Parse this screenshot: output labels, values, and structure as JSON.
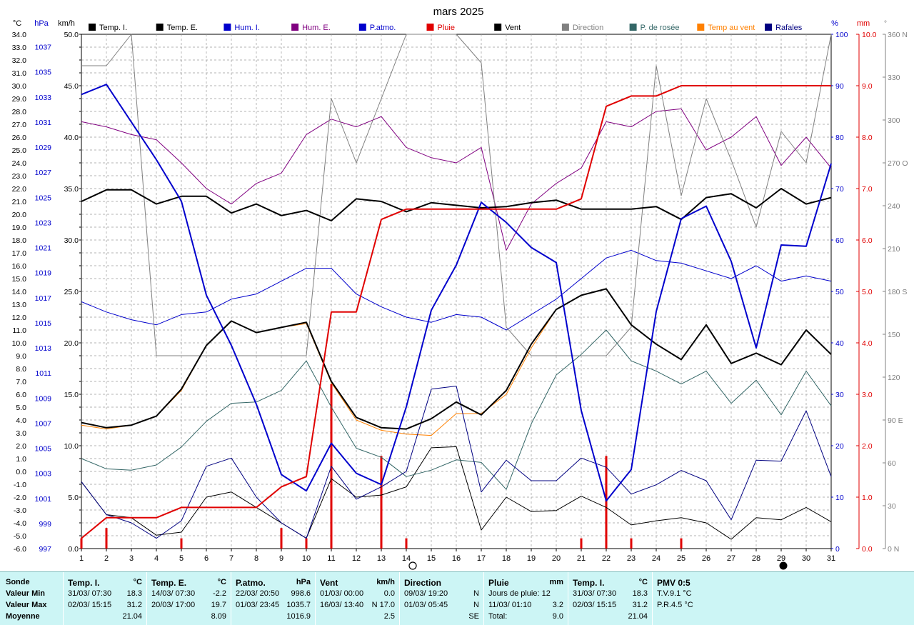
{
  "chart_data": {
    "type": "line",
    "title": "mars 2025",
    "x": [
      1,
      2,
      3,
      4,
      5,
      6,
      7,
      8,
      9,
      10,
      11,
      12,
      13,
      14,
      15,
      16,
      17,
      18,
      19,
      20,
      21,
      22,
      23,
      24,
      25,
      26,
      27,
      28,
      29,
      30,
      31
    ],
    "x_ticks": [
      "1",
      "2",
      "3",
      "4",
      "5",
      "6",
      "7",
      "8",
      "9",
      "10",
      "11",
      "12",
      "13",
      "14",
      "15",
      "16",
      "17",
      "18",
      "19",
      "20",
      "21",
      "22",
      "23",
      "24",
      "25",
      "26",
      "27",
      "28",
      "29",
      "30",
      "31"
    ],
    "axes": {
      "temp": {
        "unit": "°C",
        "min": -6.0,
        "max": 34.0,
        "ticks": [
          "34.0",
          "33.0",
          "32.0",
          "31.0",
          "30.0",
          "29.0",
          "28.0",
          "27.0",
          "26.0",
          "25.0",
          "24.0",
          "23.0",
          "22.0",
          "21.0",
          "20.0",
          "19.0",
          "18.0",
          "17.0",
          "16.0",
          "15.0",
          "14.0",
          "13.0",
          "12.0",
          "11.0",
          "10.0",
          "9.0",
          "8.0",
          "7.0",
          "6.0",
          "5.0",
          "4.0",
          "3.0",
          "2.0",
          "1.0",
          "0.0",
          "-1.0",
          "-2.0",
          "-3.0",
          "-4.0",
          "-5.0",
          "-6.0"
        ]
      },
      "pressure": {
        "unit": "hPa",
        "min": 997,
        "max": 1038,
        "ticks": [
          "1037",
          "1035",
          "1033",
          "1031",
          "1029",
          "1027",
          "1025",
          "1023",
          "1021",
          "1019",
          "1017",
          "1015",
          "1013",
          "1011",
          "1009",
          "1007",
          "1005",
          "1003",
          "1001",
          "999",
          "997"
        ]
      },
      "wind": {
        "unit": "km/h",
        "min": 0.0,
        "max": 50.0,
        "ticks": [
          "50.0",
          "45.0",
          "40.0",
          "35.0",
          "30.0",
          "25.0",
          "20.0",
          "15.0",
          "10.0",
          "5.0",
          "0.0"
        ]
      },
      "humidity": {
        "unit": "%",
        "min": 0,
        "max": 100,
        "ticks": [
          "100",
          "90",
          "80",
          "70",
          "60",
          "50",
          "40",
          "30",
          "20",
          "10",
          "0"
        ]
      },
      "rain": {
        "unit": "mm",
        "min": 0.0,
        "max": 10.0,
        "ticks": [
          "10.0",
          "9.0",
          "8.0",
          "7.0",
          "6.0",
          "5.0",
          "4.0",
          "3.0",
          "2.0",
          "1.0",
          "0.0"
        ]
      },
      "direction": {
        "unit": "°",
        "min": 0,
        "max": 360,
        "ticks": [
          "360 N",
          "330",
          "300",
          "270 O",
          "240",
          "210",
          "180 S",
          "150",
          "120",
          "90 E",
          "60",
          "30",
          "0 N"
        ]
      }
    },
    "series": [
      {
        "name": "Temp. I.",
        "color": "#000000",
        "axis": "temp",
        "width": 2,
        "values": [
          21.0,
          21.9,
          21.9,
          20.8,
          21.4,
          21.4,
          20.1,
          20.8,
          19.9,
          20.3,
          19.5,
          21.2,
          21.0,
          20.2,
          20.9,
          20.7,
          20.5,
          20.6,
          20.9,
          21.1,
          20.4,
          20.4,
          20.4,
          20.6,
          19.6,
          21.3,
          21.6,
          20.5,
          22.0,
          20.8,
          21.3
        ]
      },
      {
        "name": "Temp. E.",
        "color": "#000000",
        "axis": "temp",
        "width": 2,
        "values": [
          3.8,
          3.4,
          3.6,
          4.3,
          6.4,
          9.8,
          11.7,
          10.8,
          11.2,
          11.6,
          7.0,
          4.2,
          3.4,
          3.3,
          4.1,
          5.4,
          4.4,
          6.3,
          9.9,
          12.6,
          13.7,
          14.2,
          11.4,
          9.9,
          8.7,
          11.4,
          8.4,
          9.2,
          8.3,
          11.0,
          9.1
        ]
      },
      {
        "name": "Hum. I.",
        "color": "#0000cc",
        "axis": "humidity",
        "width": 1,
        "values": [
          48,
          46,
          44.5,
          43.5,
          45.5,
          46,
          48.5,
          49.5,
          52,
          54.5,
          54.5,
          49.5,
          47,
          45,
          44,
          45.5,
          45,
          42.5,
          45.5,
          48.5,
          52.5,
          56.5,
          58,
          56,
          55.5,
          54,
          52.5,
          55,
          52,
          53,
          52
        ]
      },
      {
        "name": "Hum. E.",
        "color": "#800080",
        "axis": "humidity",
        "width": 1,
        "values": [
          83,
          82,
          80.5,
          79.5,
          75,
          70,
          67,
          71,
          73,
          80.5,
          83.5,
          82,
          84,
          78,
          76,
          75,
          78,
          58,
          67,
          71,
          74,
          83,
          82,
          85,
          85.5,
          77.5,
          80,
          84,
          74.5,
          80,
          74
        ]
      },
      {
        "name": "P.atmo.",
        "color": "#0000cc",
        "axis": "pressure",
        "width": 2,
        "values": [
          1033.2,
          1034.0,
          1031.0,
          1028.0,
          1024.7,
          1017.2,
          1013.2,
          1008.5,
          1002.9,
          1001.6,
          1005.4,
          1003.0,
          1002.1,
          1008.3,
          1016.0,
          1019.6,
          1024.6,
          1023.0,
          1021.0,
          1019.8,
          1008.0,
          1000.8,
          1003.3,
          1015.9,
          1023.3,
          1024.3,
          1019.9,
          1013.0,
          1021.2,
          1021.1,
          1027.7
        ]
      },
      {
        "name": "Pluie",
        "color": "#e00000",
        "axis": "rain",
        "width": 2,
        "values": [
          0.2,
          0.6,
          0.6,
          0.6,
          0.8,
          0.8,
          0.8,
          0.8,
          1.2,
          1.4,
          4.6,
          4.6,
          6.4,
          6.6,
          6.6,
          6.6,
          6.6,
          6.6,
          6.6,
          6.6,
          6.8,
          8.6,
          8.8,
          8.8,
          9.0,
          9.0,
          9.0,
          9.0,
          9.0,
          9.0,
          9.0
        ]
      },
      {
        "name": "Vent",
        "color": "#000000",
        "axis": "wind",
        "width": 1,
        "values": [
          6.5,
          3.3,
          3.0,
          1.3,
          1.6,
          5.0,
          5.5,
          4.0,
          2.5,
          1.0,
          6.8,
          5.0,
          5.2,
          6.0,
          9.8,
          9.9,
          1.8,
          5.0,
          3.6,
          3.7,
          5.1,
          4.0,
          2.3,
          2.7,
          3.0,
          2.5,
          0.9,
          3.0,
          2.8,
          4.0,
          2.6
        ]
      },
      {
        "name": "Direction",
        "color": "#808080",
        "axis": "direction",
        "width": 1,
        "values": [
          338,
          338,
          360,
          135,
          135,
          135,
          135,
          135,
          135,
          135,
          315,
          270,
          315,
          360,
          360,
          360,
          340,
          155,
          135,
          135,
          135,
          135,
          155,
          338,
          247,
          315,
          272,
          225,
          292,
          270,
          360
        ]
      },
      {
        "name": "P. de rosée",
        "color": "#336666",
        "axis": "temp",
        "width": 1,
        "values": [
          1.0,
          0.2,
          0.1,
          0.5,
          1.9,
          3.9,
          5.3,
          5.4,
          6.3,
          8.6,
          5.0,
          1.8,
          1.1,
          -0.4,
          0.1,
          0.9,
          0.7,
          -1.4,
          3.7,
          7.5,
          9.1,
          11.0,
          8.6,
          7.8,
          6.8,
          7.8,
          5.3,
          7.1,
          4.4,
          7.8,
          5.1
        ]
      },
      {
        "name": "Temp au vent",
        "color": "#ff8000",
        "axis": "temp",
        "width": 1,
        "values": [
          3.6,
          3.3,
          3.6,
          4.3,
          6.3,
          9.8,
          11.7,
          10.8,
          11.2,
          11.5,
          6.9,
          4.0,
          3.2,
          2.9,
          2.8,
          4.5,
          4.5,
          6.0,
          9.6,
          12.6,
          13.7,
          14.2,
          11.4,
          9.9,
          8.7,
          11.4,
          8.4,
          9.2,
          8.3,
          11.0,
          9.1
        ]
      },
      {
        "name": "Rafales",
        "color": "#000080",
        "axis": "wind",
        "width": 1,
        "values": [
          6.5,
          3.3,
          2.5,
          1.0,
          2.7,
          8.0,
          8.8,
          5.0,
          2.5,
          1.0,
          8.0,
          4.8,
          6.0,
          7.5,
          15.5,
          15.8,
          5.5,
          8.6,
          6.6,
          6.6,
          8.8,
          7.9,
          5.3,
          6.2,
          7.6,
          6.6,
          2.8,
          8.6,
          8.5,
          13.4,
          7.0
        ]
      }
    ],
    "rain_bars": {
      "name": "Pluie",
      "color": "#e00000",
      "axis": "rain",
      "bars": [
        {
          "x": 1,
          "v": 0.2
        },
        {
          "x": 2,
          "v": 0.4
        },
        {
          "x": 5,
          "v": 0.2
        },
        {
          "x": 9,
          "v": 0.4
        },
        {
          "x": 10,
          "v": 0.2
        },
        {
          "x": 11,
          "v": 3.2
        },
        {
          "x": 13,
          "v": 1.8
        },
        {
          "x": 14,
          "v": 0.2
        },
        {
          "x": 21,
          "v": 0.2
        },
        {
          "x": 22,
          "v": 1.8
        },
        {
          "x": 23,
          "v": 0.2
        },
        {
          "x": 25,
          "v": 0.2
        }
      ]
    },
    "moon_phases": [
      {
        "x": 14,
        "phase": "full",
        "symbol": "○"
      },
      {
        "x": 29,
        "phase": "new",
        "symbol": "●"
      }
    ],
    "legend_placement": "top",
    "grid": true
  },
  "stats": {
    "labels": {
      "sonde": "Sonde",
      "min": "Valeur Min",
      "max": "Valeur Max",
      "avg": "Moyenne"
    },
    "temp_i": {
      "title": "Temp. I.",
      "unit": "°C",
      "min_t": "31/03/  07:30",
      "min_v": "18.3",
      "max_t": "02/03/  15:15",
      "max_v": "31.2",
      "avg": "21.04"
    },
    "temp_e": {
      "title": "Temp. E.",
      "unit": "°C",
      "min_t": "14/03/  07:30",
      "min_v": "-2.2",
      "max_t": "20/03/  17:00",
      "max_v": "19.7",
      "avg": "8.09"
    },
    "patmo": {
      "title": "P.atmo.",
      "unit": "hPa",
      "min_t": "22/03/  20:50",
      "min_v": "998.6",
      "max_t": "01/03/  23:45",
      "max_v": "1035.7",
      "avg": "1016.9"
    },
    "vent": {
      "title": "Vent",
      "unit": "km/h",
      "min_t": "01/03/  00:00",
      "min_v": "0.0",
      "max_t": "16/03/  13:40",
      "max_v": "N 17.0",
      "avg": "2.5"
    },
    "direction": {
      "title": "Direction",
      "min_t": "09/03/  19:20",
      "min_v": "N",
      "max_t": "01/03/  05:45",
      "max_v": "N",
      "avg": "SE"
    },
    "pluie": {
      "title": "Pluie",
      "unit": "mm",
      "r1_l": "Jours de pluie: 12",
      "r1_v": "",
      "r2_l": "11/03/  01:10",
      "r2_v": "3.2",
      "r3_l": "Total:",
      "r3_v": "9.0"
    },
    "temp_i2": {
      "title": "Temp. I.",
      "unit": "°C",
      "min_t": "31/03/  07:30",
      "min_v": "18.3",
      "max_t": "02/03/  15:15",
      "max_v": "31.2",
      "avg": "21.04"
    },
    "pmv": {
      "title": "PMV 0:5",
      "r1": "T.V.9.1 °C",
      "r2": "P.R.4.5 °C"
    }
  }
}
